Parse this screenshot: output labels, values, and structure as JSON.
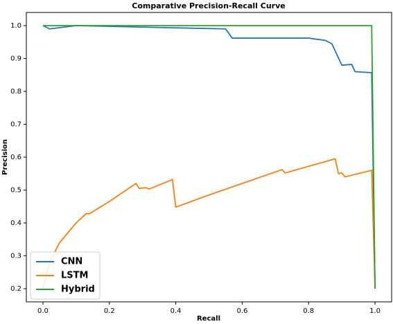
{
  "chart_data": {
    "type": "line",
    "title": "Comparative Precision-Recall Curve",
    "x_label": "Recall",
    "y_label": "Precision",
    "xlim": [
      -0.05,
      1.05
    ],
    "ylim": [
      0.16,
      1.04
    ],
    "xticks": [
      {
        "value": 0,
        "label": "0.0"
      },
      0.2,
      0.4,
      0.6,
      0.8,
      {
        "value": 1,
        "label": "1.0"
      }
    ],
    "yticks": [
      0.2,
      0.3,
      0.4,
      0.5,
      0.6,
      0.7,
      0.8,
      0.9,
      {
        "value": 1,
        "label": "1.0"
      }
    ],
    "legend": "lower left",
    "series": [
      {
        "name": "CNN",
        "color": "#1f77b4",
        "x": [
          0,
          0.02,
          0.1,
          0.32,
          0.55,
          0.57,
          0.7,
          0.8,
          0.85,
          0.87,
          0.9,
          0.93,
          0.94,
          0.99,
          1.0
        ],
        "values": [
          1.0,
          0.99,
          1.0,
          0.995,
          0.99,
          0.962,
          0.962,
          0.962,
          0.955,
          0.945,
          0.88,
          0.882,
          0.86,
          0.857,
          0.2
        ]
      },
      {
        "name": "LSTM",
        "color": "#ff7f0e",
        "x": [
          0,
          0.02,
          0.05,
          0.1,
          0.13,
          0.14,
          0.2,
          0.28,
          0.29,
          0.31,
          0.32,
          0.39,
          0.4,
          0.5,
          0.6,
          0.72,
          0.73,
          0.88,
          0.89,
          0.9,
          0.91,
          0.99,
          1.0
        ],
        "values": [
          0.2,
          0.28,
          0.34,
          0.4,
          0.428,
          0.428,
          0.465,
          0.52,
          0.505,
          0.507,
          0.503,
          0.532,
          0.448,
          0.485,
          0.52,
          0.562,
          0.552,
          0.595,
          0.55,
          0.552,
          0.54,
          0.56,
          0.2
        ]
      },
      {
        "name": "Hybrid",
        "color": "#2ca02c",
        "x": [
          0,
          0.99,
          1.0
        ],
        "values": [
          1.0,
          1.0,
          0.2
        ]
      }
    ]
  }
}
